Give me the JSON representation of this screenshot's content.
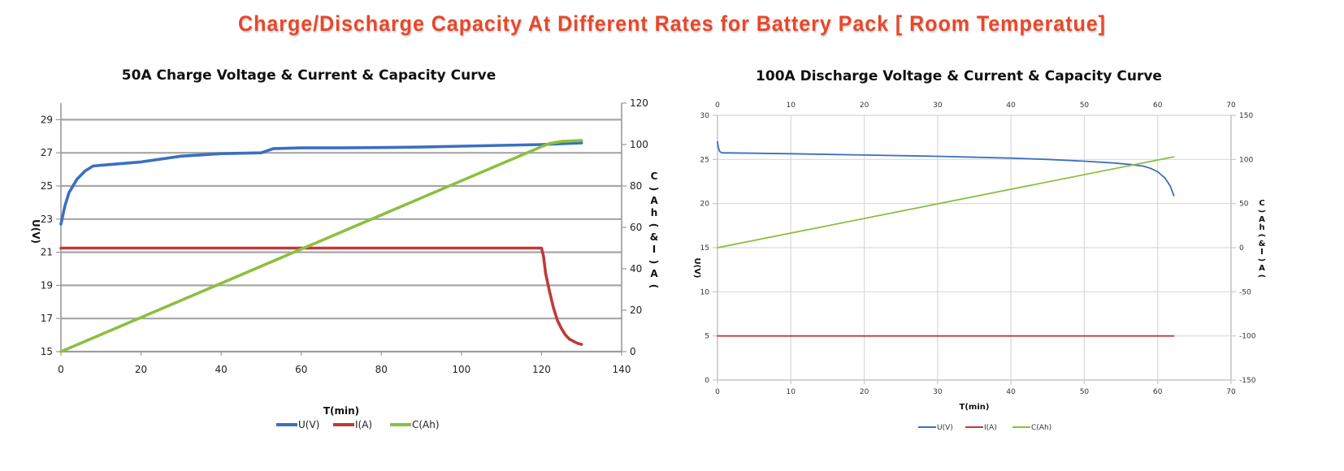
{
  "page_title": "Charge/Discharge Capacity At Different Rates for Battery Pack [ Room Temperatue]",
  "chart_data": [
    {
      "type": "line",
      "title": "50A Charge Voltage & Current & Capacity Curve",
      "xlabel": "T(min)",
      "ylabel": "U(V)",
      "y2label": "C(Ah)&I(A)",
      "xlim": [
        0,
        140
      ],
      "ylim": [
        15,
        30
      ],
      "y2lim": [
        0,
        120
      ],
      "x_ticks": [
        "0",
        "20",
        "40",
        "60",
        "80",
        "100",
        "120",
        "140"
      ],
      "y_ticks": [
        "15",
        "17",
        "19",
        "21",
        "23",
        "25",
        "27",
        "29"
      ],
      "y2_ticks": [
        "0",
        "20",
        "40",
        "60",
        "80",
        "100",
        "120"
      ],
      "grid": "horizontal",
      "legend_position": "bottom",
      "series": [
        {
          "name": "U(V)",
          "axis": "left",
          "color": "#3a70c0",
          "x": [
            0,
            1,
            2,
            4,
            6,
            8,
            10,
            20,
            30,
            40,
            50,
            53,
            60,
            70,
            80,
            90,
            100,
            110,
            120,
            130
          ],
          "y": [
            22.7,
            23.8,
            24.6,
            25.4,
            25.9,
            26.2,
            26.25,
            26.45,
            26.8,
            26.95,
            27.0,
            27.25,
            27.3,
            27.3,
            27.32,
            27.35,
            27.4,
            27.45,
            27.5,
            27.6
          ]
        },
        {
          "name": "I(A)",
          "axis": "right",
          "color": "#c0393b",
          "x": [
            0,
            120,
            120.5,
            121,
            122,
            123,
            124,
            125,
            126,
            127,
            128,
            129,
            130
          ],
          "y": [
            50,
            50,
            46,
            38,
            29,
            21,
            15,
            11,
            8,
            6,
            5,
            4,
            3.5
          ]
        },
        {
          "name": "C(Ah)",
          "axis": "right",
          "color": "#8cbf3f",
          "x": [
            0,
            120,
            122,
            125,
            130
          ],
          "y": [
            0,
            99,
            100.5,
            101.5,
            102
          ]
        }
      ]
    },
    {
      "type": "line",
      "title": "100A Discharge Voltage & Current & Capacity Curve",
      "xlabel": "T(min)",
      "ylabel": "U(V)",
      "y2label": "C(Ah)&I(A)",
      "xlim": [
        0,
        70
      ],
      "ylim": [
        0,
        30
      ],
      "y2lim": [
        -150,
        150
      ],
      "x_ticks": [
        "0",
        "10",
        "20",
        "30",
        "40",
        "50",
        "60",
        "70"
      ],
      "y_ticks": [
        "0",
        "5",
        "10",
        "15",
        "20",
        "25",
        "30"
      ],
      "y2_ticks": [
        "-150",
        "-100",
        "-50",
        "0",
        "50",
        "100",
        "150"
      ],
      "grid": "both",
      "legend_position": "bottom",
      "series": [
        {
          "name": "U(V)",
          "axis": "left",
          "color": "#3a70c0",
          "x": [
            0,
            0.1,
            0.3,
            0.6,
            5,
            10,
            20,
            30,
            40,
            45,
            50,
            54,
            56,
            58,
            59,
            60,
            61,
            61.7,
            62.2
          ],
          "y": [
            27.0,
            26.4,
            25.9,
            25.75,
            25.7,
            25.65,
            25.5,
            25.35,
            25.15,
            25.0,
            24.8,
            24.6,
            24.45,
            24.25,
            24.0,
            23.6,
            22.9,
            22.0,
            20.9
          ]
        },
        {
          "name": "I(A)",
          "axis": "right",
          "color": "#c0393b",
          "x": [
            0,
            62.2
          ],
          "y": [
            -100,
            -100
          ]
        },
        {
          "name": "C(Ah)",
          "axis": "right",
          "color": "#8cbf3f",
          "x": [
            0,
            62.2
          ],
          "y": [
            0,
            103
          ]
        }
      ]
    }
  ]
}
